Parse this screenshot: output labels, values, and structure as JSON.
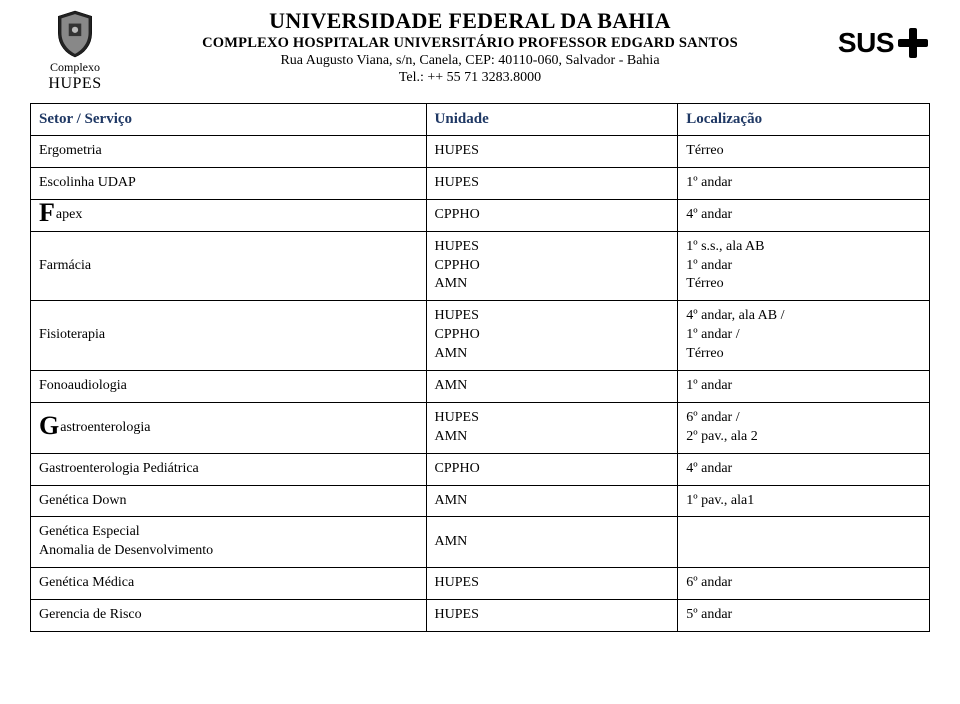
{
  "colors": {
    "text": "#000000",
    "header_accent": "#1f3864",
    "border": "#000000",
    "sus_black": "#000000",
    "background": "#ffffff"
  },
  "header": {
    "complexo": "Complexo",
    "hupes": "HUPES",
    "university": "UNIVERSIDADE FEDERAL DA BAHIA",
    "hospital": "COMPLEXO HOSPITALAR UNIVERSITÁRIO PROFESSOR EDGARD SANTOS",
    "address": "Rua Augusto Viana, s/n, Canela, CEP: 40110-060, Salvador - Bahia",
    "phone": "Tel.: ++ 55 71 3283.8000",
    "sus": "SUS"
  },
  "table": {
    "columns": [
      "Setor / Serviço",
      "Unidade",
      "Localização"
    ],
    "rows": [
      {
        "setor": "Ergometria",
        "unidade": "HUPES",
        "local": "Térreo"
      },
      {
        "setor": "Escolinha UDAP",
        "unidade": "HUPES",
        "local": "1º andar"
      },
      {
        "setor_drop": "F",
        "setor_rest": "apex",
        "unidade": "CPPHO",
        "local": "4º andar"
      },
      {
        "setor": "Farmácia",
        "unidade": "HUPES\nCPPHO\nAMN",
        "local": "1º s.s., ala AB\n1º andar\nTérreo"
      },
      {
        "setor": "Fisioterapia",
        "unidade": "HUPES\nCPPHO\nAMN",
        "local": "4º andar, ala AB /\n1º andar /\nTérreo"
      },
      {
        "setor": "Fonoaudiologia",
        "unidade": "AMN",
        "local": "1º andar"
      },
      {
        "setor_drop": "G",
        "setor_rest": "astroenterologia",
        "unidade": "HUPES\nAMN",
        "local": "6º andar /\n2º pav., ala 2"
      },
      {
        "setor": "Gastroenterologia Pediátrica",
        "unidade": "CPPHO",
        "local": "4º andar"
      },
      {
        "setor": "Genética Down",
        "unidade": "AMN",
        "local": "1º pav., ala1"
      },
      {
        "setor": "Genética Especial\nAnomalia de Desenvolvimento",
        "unidade": "AMN",
        "local": ""
      },
      {
        "setor": "Genética Médica",
        "unidade": "HUPES",
        "local": "6º andar"
      },
      {
        "setor": "Gerencia de Risco",
        "unidade": "HUPES",
        "local": "5º andar"
      }
    ]
  }
}
